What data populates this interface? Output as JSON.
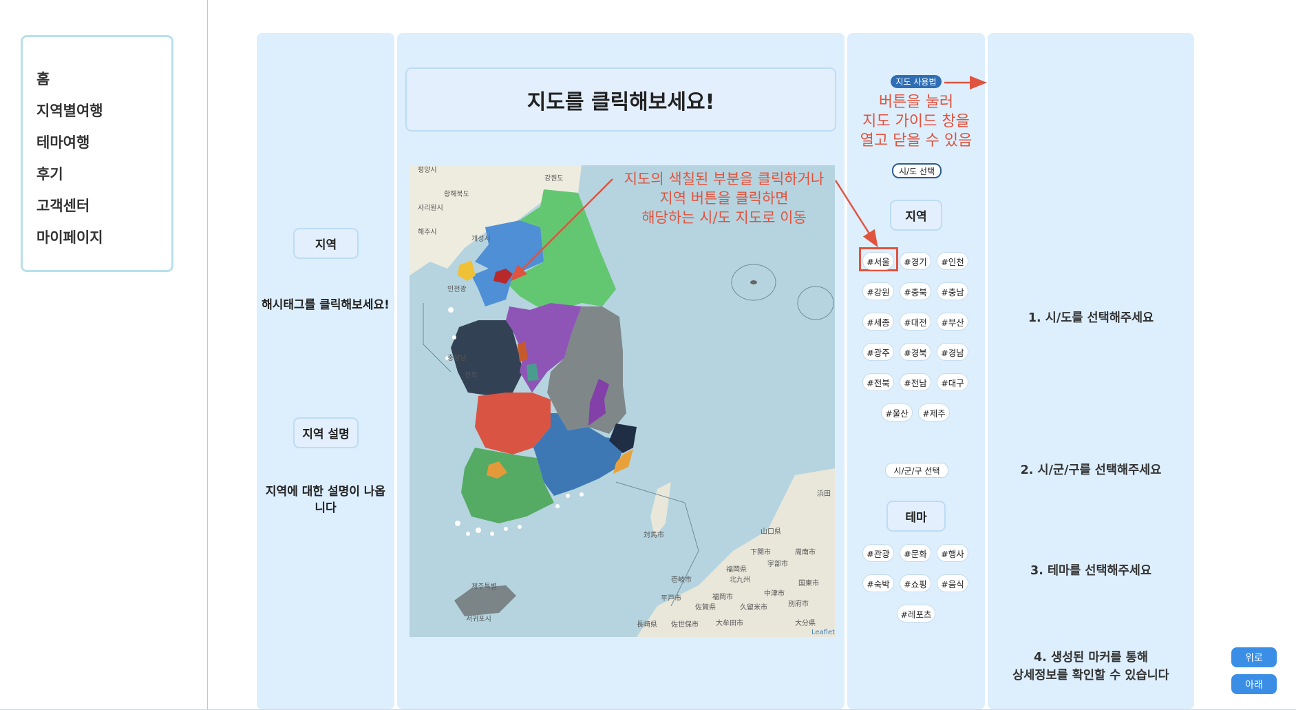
{
  "nav": {
    "items": [
      "홈",
      "지역별여행",
      "테마여행",
      "후기",
      "고객센터",
      "마이페이지"
    ]
  },
  "left_panel": {
    "region_button": "지역",
    "hashtag_hint": "해시태그를 클릭해보세요!",
    "region_desc_button": "지역 설명",
    "region_desc_text": "지역에 대한 설명이 나옵니다"
  },
  "map_panel": {
    "title": "지도를 클릭해보세요!",
    "annotation": [
      "지도의 색칠된 부분을 클릭하거나",
      "지역 버튼을 클릭하면",
      "해당하는 시/도 지도로 이동"
    ],
    "attribution": "Leaflet",
    "place_labels": [
      "평양시",
      "강원도",
      "황해북도",
      "사리원시",
      "해주시",
      "개성시",
      "인천광",
      "충청남",
      "전북",
      "제주특별",
      "서귀포시",
      "対馬市",
      "山口県",
      "下関市",
      "周南市",
      "宇部市",
      "壱岐市",
      "福岡県",
      "北九州",
      "平戸市",
      "福岡市",
      "中津市",
      "国東市",
      "佐賀県",
      "久留米市",
      "別府市",
      "長崎県",
      "佐世保市",
      "大牟田市",
      "大分県",
      "浜田"
    ],
    "region_colors": {
      "gyeonggi": "#4e8fd6",
      "gangwon": "#63c772",
      "seoul": "#b8292b",
      "incheon": "#f0c037",
      "chungnam": "#334155",
      "chungbuk": "#8e55b6",
      "sejong": "#c75a2b",
      "daejeon": "#4a9d8e",
      "gyeongbuk": "#7f8789",
      "daegu": "#8240a8",
      "jeonbuk": "#d95443",
      "jeonnam": "#55ab63",
      "gwangju": "#e49a3a",
      "gyeongnam": "#3d78b5",
      "busan": "#e9a23b",
      "ulsan": "#1f2d45",
      "jeju": "#7b8588"
    }
  },
  "guide_panel": {
    "guide_badge": "지도 사용법",
    "guide_annotation": [
      "버튼을 눌러",
      "지도 가이드 창을",
      "열고 닫을 수 있음"
    ],
    "sido_select_badge": "시/도 선택",
    "region_button": "지역",
    "region_tags": [
      "#서울",
      "#경기",
      "#인천",
      "#강원",
      "#충북",
      "#충남",
      "#세종",
      "#대전",
      "#부산",
      "#광주",
      "#경북",
      "#경남",
      "#전북",
      "#전남",
      "#대구",
      "#울산",
      "#제주"
    ],
    "sigungu_select_badge": "시/군/구 선택",
    "theme_button": "테마",
    "theme_tags": [
      "#관광",
      "#문화",
      "#행사",
      "#숙박",
      "#쇼핑",
      "#음식",
      "#레포츠"
    ]
  },
  "steps_panel": {
    "step1": "1. 시/도를 선택해주세요",
    "step2": "2. 시/군/구를 선택해주세요",
    "step3": "3. 테마를 선택해주세요",
    "step4_line1": "4. 생성된 마커를 통해",
    "step4_line2": "상세정보를 확인할 수 있습니다"
  },
  "scroll": {
    "up": "위로",
    "down": "아래"
  },
  "colors": {
    "panel_bg": "#ddeefd",
    "annotation_red": "#e0533e",
    "button_blue": "#3a8ee6"
  }
}
